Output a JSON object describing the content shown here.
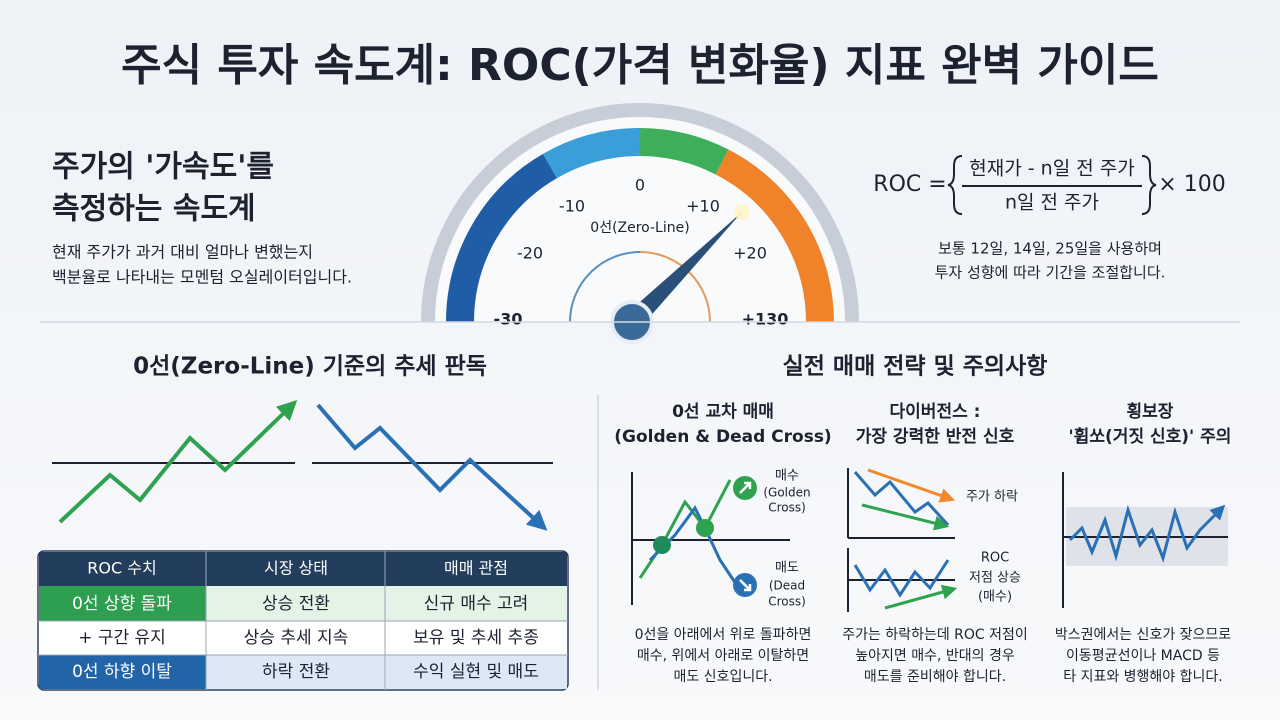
{
  "header": {
    "title": "주식 투자 속도계: ROC(가격 변화율) 지표 완벽 가이드"
  },
  "intro": {
    "heading": [
      "주가의 '가속도'를",
      "측정하는 속도계"
    ],
    "description": [
      "현재 주가가 과거 대비 얼마나 변했는지",
      "백분율로 나타내는 모멘텀 오실레이터입니다."
    ]
  },
  "gauge": {
    "labels": [
      "-30",
      "-20",
      "-10",
      "0",
      "+10",
      "+20",
      "+130"
    ],
    "zero_line": "0선(Zero-Line)"
  },
  "formula": {
    "lhs": "ROC =",
    "numerator": "현재가 - n일 전 주가",
    "denominator": "n일 전 주가",
    "multiplier": "× 100",
    "note": [
      "보통 12일, 14일, 25일을 사용하며",
      "투자 성향에 따라 기간을 조절합니다."
    ]
  },
  "trend_section": {
    "title": "0선(Zero-Line) 기준의 추세 판독"
  },
  "table": {
    "header": [
      "ROC 수치",
      "시장 상태",
      "매매 관점"
    ],
    "rows": [
      [
        "0선 상향 돌파",
        "상승 전환",
        "신규 매수 고려"
      ],
      [
        "+ 구간 유지",
        "상승 추세 지속",
        "보유 및 추세 추종"
      ],
      [
        "0선 하향 이탈",
        "하락 전환",
        "수익 실현 및 매도"
      ]
    ]
  },
  "strategy_section": {
    "title": "실전 매매 전략 및 주의사항",
    "columns": [
      {
        "title": [
          "0선 교차 매매",
          "(Golden & Dead Cross)"
        ],
        "labels": [
          "매수",
          "(Golden",
          "Cross)",
          "매도",
          "(Dead",
          "Cross)"
        ],
        "description": [
          "0선을 아래에서 위로 돌파하면",
          "매수, 위에서 아래로 이탈하면",
          "매도 신호입니다."
        ]
      },
      {
        "title": [
          "다이버전스 :",
          "가장 강력한 반전 신호"
        ],
        "labels": [
          "주가 하락",
          "ROC",
          "저점 상승",
          "(매수)"
        ],
        "description": [
          "주가는 하락하는데 ROC 저점이",
          "높아지면 매수, 반대의 경우",
          "매도를 준비해야 합니다."
        ]
      },
      {
        "title": [
          "횡보장",
          "'휩쏘(거짓 신호)' 주의"
        ],
        "description": [
          "박스권에서는 신호가 잦으므로",
          "이동평균선이나 MACD 등",
          "타 지표와 병행해야 합니다."
        ]
      }
    ]
  }
}
